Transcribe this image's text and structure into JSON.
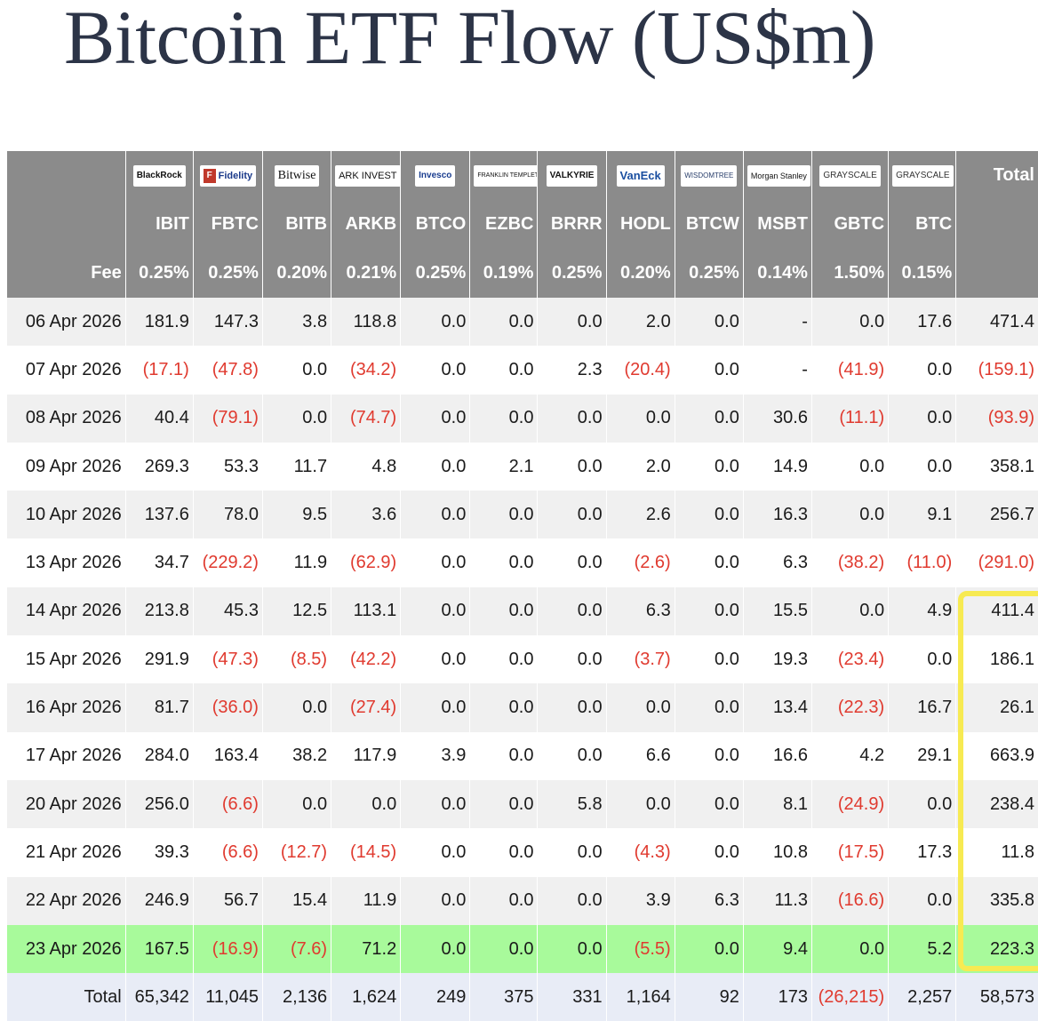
{
  "title": "Bitcoin ETF Flow (US$m)",
  "header": {
    "logos": [
      {
        "icon": "blackrock-logo",
        "text": "BlackRock"
      },
      {
        "icon": "fidelity-logo",
        "text": "Fidelity"
      },
      {
        "icon": "bitwise-logo",
        "text": "Bitwise"
      },
      {
        "icon": "ark-invest-logo",
        "text": "ARK INVEST"
      },
      {
        "icon": "invesco-logo",
        "text": "Invesco"
      },
      {
        "icon": "franklin-templeton-logo",
        "text": "FRANKLIN TEMPLETON"
      },
      {
        "icon": "valkyrie-logo",
        "text": "VALKYRIE"
      },
      {
        "icon": "vaneck-logo",
        "text": "VanEck"
      },
      {
        "icon": "wisdomtree-logo",
        "text": "WISDOMTREE"
      },
      {
        "icon": "morgan-stanley-logo",
        "text": "Morgan Stanley"
      },
      {
        "icon": "grayscale-logo",
        "text": "GRAYSCALE"
      },
      {
        "icon": "grayscale-logo",
        "text": "GRAYSCALE"
      }
    ],
    "total_label": "Total",
    "tickers": [
      "IBIT",
      "FBTC",
      "BITB",
      "ARKB",
      "BTCO",
      "EZBC",
      "BRRR",
      "HODL",
      "BTCW",
      "MSBT",
      "GBTC",
      "BTC"
    ],
    "fee_label": "Fee",
    "fees": [
      "0.25%",
      "0.25%",
      "0.20%",
      "0.21%",
      "0.25%",
      "0.19%",
      "0.25%",
      "0.20%",
      "0.25%",
      "0.14%",
      "1.50%",
      "0.15%"
    ]
  },
  "rows": [
    {
      "date": "06 Apr 2026",
      "values": [
        "181.9",
        "147.3",
        "3.8",
        "118.8",
        "0.0",
        "0.0",
        "0.0",
        "2.0",
        "0.0",
        "-",
        "0.0",
        "17.6",
        "471.4"
      ]
    },
    {
      "date": "07 Apr 2026",
      "values": [
        "(17.1)",
        "(47.8)",
        "0.0",
        "(34.2)",
        "0.0",
        "0.0",
        "2.3",
        "(20.4)",
        "0.0",
        "-",
        "(41.9)",
        "0.0",
        "(159.1)"
      ]
    },
    {
      "date": "08 Apr 2026",
      "values": [
        "40.4",
        "(79.1)",
        "0.0",
        "(74.7)",
        "0.0",
        "0.0",
        "0.0",
        "0.0",
        "0.0",
        "30.6",
        "(11.1)",
        "0.0",
        "(93.9)"
      ]
    },
    {
      "date": "09 Apr 2026",
      "values": [
        "269.3",
        "53.3",
        "11.7",
        "4.8",
        "0.0",
        "2.1",
        "0.0",
        "2.0",
        "0.0",
        "14.9",
        "0.0",
        "0.0",
        "358.1"
      ]
    },
    {
      "date": "10 Apr 2026",
      "values": [
        "137.6",
        "78.0",
        "9.5",
        "3.6",
        "0.0",
        "0.0",
        "0.0",
        "2.6",
        "0.0",
        "16.3",
        "0.0",
        "9.1",
        "256.7"
      ]
    },
    {
      "date": "13 Apr 2026",
      "values": [
        "34.7",
        "(229.2)",
        "11.9",
        "(62.9)",
        "0.0",
        "0.0",
        "0.0",
        "(2.6)",
        "0.0",
        "6.3",
        "(38.2)",
        "(11.0)",
        "(291.0)"
      ]
    },
    {
      "date": "14 Apr 2026",
      "values": [
        "213.8",
        "45.3",
        "12.5",
        "113.1",
        "0.0",
        "0.0",
        "0.0",
        "6.3",
        "0.0",
        "15.5",
        "0.0",
        "4.9",
        "411.4"
      ]
    },
    {
      "date": "15 Apr 2026",
      "values": [
        "291.9",
        "(47.3)",
        "(8.5)",
        "(42.2)",
        "0.0",
        "0.0",
        "0.0",
        "(3.7)",
        "0.0",
        "19.3",
        "(23.4)",
        "0.0",
        "186.1"
      ]
    },
    {
      "date": "16 Apr 2026",
      "values": [
        "81.7",
        "(36.0)",
        "0.0",
        "(27.4)",
        "0.0",
        "0.0",
        "0.0",
        "0.0",
        "0.0",
        "13.4",
        "(22.3)",
        "16.7",
        "26.1"
      ]
    },
    {
      "date": "17 Apr 2026",
      "values": [
        "284.0",
        "163.4",
        "38.2",
        "117.9",
        "3.9",
        "0.0",
        "0.0",
        "6.6",
        "0.0",
        "16.6",
        "4.2",
        "29.1",
        "663.9"
      ]
    },
    {
      "date": "20 Apr 2026",
      "values": [
        "256.0",
        "(6.6)",
        "0.0",
        "0.0",
        "0.0",
        "0.0",
        "5.8",
        "0.0",
        "0.0",
        "8.1",
        "(24.9)",
        "0.0",
        "238.4"
      ]
    },
    {
      "date": "21 Apr 2026",
      "values": [
        "39.3",
        "(6.6)",
        "(12.7)",
        "(14.5)",
        "0.0",
        "0.0",
        "0.0",
        "(4.3)",
        "0.0",
        "10.8",
        "(17.5)",
        "17.3",
        "11.8"
      ]
    },
    {
      "date": "22 Apr 2026",
      "values": [
        "246.9",
        "56.7",
        "15.4",
        "11.9",
        "0.0",
        "0.0",
        "0.0",
        "3.9",
        "6.3",
        "11.3",
        "(16.6)",
        "0.0",
        "335.8"
      ]
    },
    {
      "date": "23 Apr 2026",
      "values": [
        "167.5",
        "(16.9)",
        "(7.6)",
        "71.2",
        "0.0",
        "0.0",
        "0.0",
        "(5.5)",
        "0.0",
        "9.4",
        "0.0",
        "5.2",
        "223.3"
      ]
    }
  ],
  "total_row": {
    "label": "Total",
    "values": [
      "65,342",
      "11,045",
      "2,136",
      "1,624",
      "249",
      "375",
      "331",
      "1,164",
      "92",
      "173",
      "(26,215)",
      "2,257",
      "58,573"
    ]
  },
  "colors": {
    "header_bg": "#8b8b8b",
    "negative": "#e03a2f",
    "highlight_row": "#a8fa9b",
    "total_row": "#e8ecf6",
    "annotation_box": "#f7ea52"
  }
}
